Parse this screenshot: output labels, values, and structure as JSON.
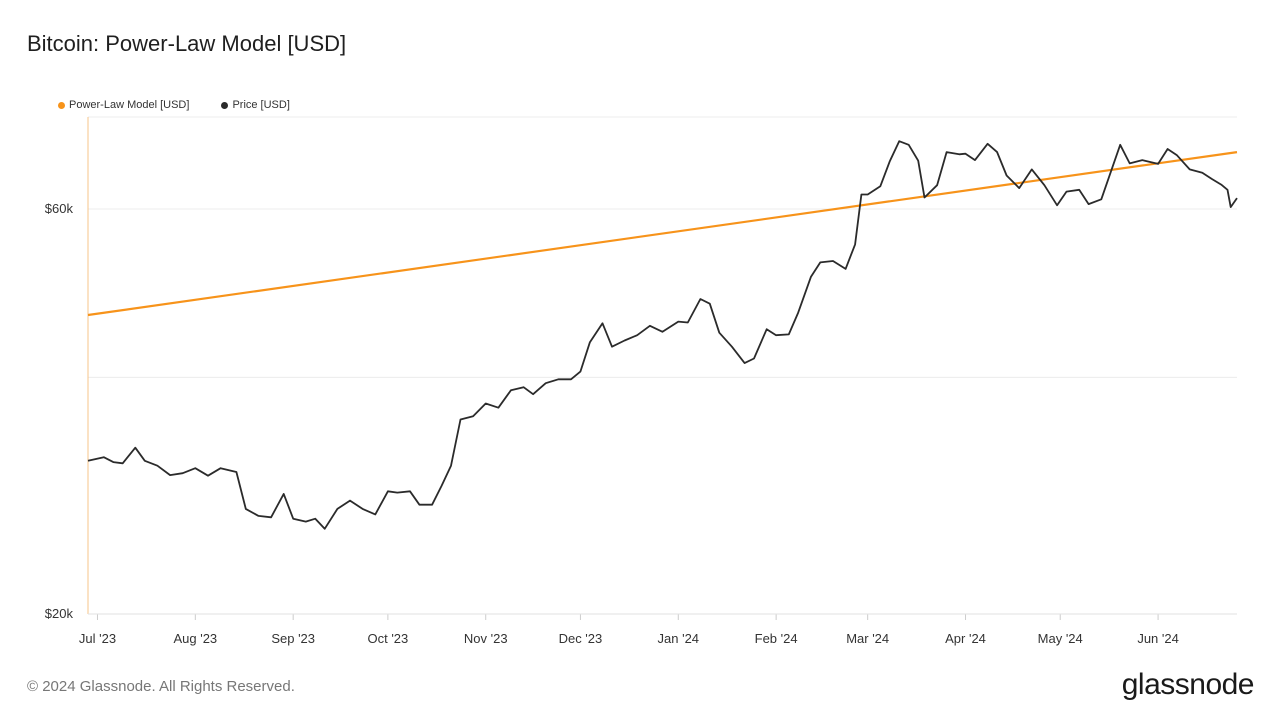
{
  "title": "Bitcoin: Power-Law Model [USD]",
  "legend": [
    {
      "label": "Power-Law Model [USD]",
      "color": "#f7931a"
    },
    {
      "label": "Price [USD]",
      "color": "#2b2b2b"
    }
  ],
  "footer": "© 2024 Glassnode. All Rights Reserved.",
  "brand": "glassnode",
  "chart_data": {
    "type": "line",
    "title": "Bitcoin: Power-Law Model [USD]",
    "y_scale": "log",
    "ylim": [
      20000,
      77000
    ],
    "y_ticks": [
      {
        "value": 20000,
        "label": "$20k"
      },
      {
        "value": 60000,
        "label": "$60k"
      }
    ],
    "y_grid": [
      20000,
      38000,
      60000,
      77000
    ],
    "xlim": [
      "2023-06-28",
      "2024-06-26"
    ],
    "x_ticks": [
      {
        "date": "2023-07-01",
        "label": "Jul '23"
      },
      {
        "date": "2023-08-01",
        "label": "Aug '23"
      },
      {
        "date": "2023-09-01",
        "label": "Sep '23"
      },
      {
        "date": "2023-10-01",
        "label": "Oct '23"
      },
      {
        "date": "2023-11-01",
        "label": "Nov '23"
      },
      {
        "date": "2023-12-01",
        "label": "Dec '23"
      },
      {
        "date": "2024-01-01",
        "label": "Jan '24"
      },
      {
        "date": "2024-02-01",
        "label": "Feb '24"
      },
      {
        "date": "2024-03-01",
        "label": "Mar '24"
      },
      {
        "date": "2024-04-01",
        "label": "Apr '24"
      },
      {
        "date": "2024-05-01",
        "label": "May '24"
      },
      {
        "date": "2024-06-01",
        "label": "Jun '24"
      }
    ],
    "series": [
      {
        "name": "Power-Law Model [USD]",
        "color": "#f7931a",
        "points": [
          [
            "2023-06-28",
            45000
          ],
          [
            "2024-06-26",
            70000
          ]
        ]
      },
      {
        "name": "Price [USD]",
        "color": "#2b2b2b",
        "points": [
          [
            "2023-06-28",
            30300
          ],
          [
            "2023-07-03",
            30600
          ],
          [
            "2023-07-06",
            30200
          ],
          [
            "2023-07-09",
            30100
          ],
          [
            "2023-07-13",
            31400
          ],
          [
            "2023-07-16",
            30300
          ],
          [
            "2023-07-20",
            29900
          ],
          [
            "2023-07-24",
            29150
          ],
          [
            "2023-07-28",
            29300
          ],
          [
            "2023-08-01",
            29700
          ],
          [
            "2023-08-05",
            29100
          ],
          [
            "2023-08-09",
            29700
          ],
          [
            "2023-08-14",
            29400
          ],
          [
            "2023-08-17",
            26600
          ],
          [
            "2023-08-21",
            26100
          ],
          [
            "2023-08-25",
            26000
          ],
          [
            "2023-08-29",
            27700
          ],
          [
            "2023-09-01",
            25900
          ],
          [
            "2023-09-05",
            25700
          ],
          [
            "2023-09-08",
            25900
          ],
          [
            "2023-09-11",
            25200
          ],
          [
            "2023-09-15",
            26600
          ],
          [
            "2023-09-19",
            27200
          ],
          [
            "2023-09-23",
            26600
          ],
          [
            "2023-09-27",
            26200
          ],
          [
            "2023-10-01",
            27900
          ],
          [
            "2023-10-04",
            27800
          ],
          [
            "2023-10-08",
            27900
          ],
          [
            "2023-10-11",
            26900
          ],
          [
            "2023-10-15",
            26900
          ],
          [
            "2023-10-18",
            28300
          ],
          [
            "2023-10-21",
            29900
          ],
          [
            "2023-10-24",
            33900
          ],
          [
            "2023-10-28",
            34200
          ],
          [
            "2023-11-01",
            35400
          ],
          [
            "2023-11-05",
            35000
          ],
          [
            "2023-11-09",
            36700
          ],
          [
            "2023-11-13",
            37000
          ],
          [
            "2023-11-16",
            36300
          ],
          [
            "2023-11-20",
            37400
          ],
          [
            "2023-11-24",
            37800
          ],
          [
            "2023-11-28",
            37800
          ],
          [
            "2023-12-01",
            38600
          ],
          [
            "2023-12-04",
            41800
          ],
          [
            "2023-12-08",
            44000
          ],
          [
            "2023-12-11",
            41300
          ],
          [
            "2023-12-15",
            42000
          ],
          [
            "2023-12-19",
            42600
          ],
          [
            "2023-12-23",
            43700
          ],
          [
            "2023-12-27",
            43000
          ],
          [
            "2024-01-01",
            44200
          ],
          [
            "2024-01-04",
            44100
          ],
          [
            "2024-01-08",
            47000
          ],
          [
            "2024-01-11",
            46400
          ],
          [
            "2024-01-14",
            42900
          ],
          [
            "2024-01-18",
            41300
          ],
          [
            "2024-01-22",
            39500
          ],
          [
            "2024-01-25",
            40000
          ],
          [
            "2024-01-29",
            43300
          ],
          [
            "2024-02-01",
            42600
          ],
          [
            "2024-02-05",
            42700
          ],
          [
            "2024-02-08",
            45300
          ],
          [
            "2024-02-12",
            49900
          ],
          [
            "2024-02-15",
            51900
          ],
          [
            "2024-02-19",
            52100
          ],
          [
            "2024-02-23",
            51000
          ],
          [
            "2024-02-26",
            54500
          ],
          [
            "2024-02-28",
            62400
          ],
          [
            "2024-03-01",
            62400
          ],
          [
            "2024-03-05",
            63800
          ],
          [
            "2024-03-08",
            68300
          ],
          [
            "2024-03-11",
            72100
          ],
          [
            "2024-03-14",
            71400
          ],
          [
            "2024-03-17",
            68400
          ],
          [
            "2024-03-19",
            61900
          ],
          [
            "2024-03-23",
            64000
          ],
          [
            "2024-03-26",
            70000
          ],
          [
            "2024-03-30",
            69600
          ],
          [
            "2024-04-01",
            69700
          ],
          [
            "2024-04-04",
            68500
          ],
          [
            "2024-04-08",
            71600
          ],
          [
            "2024-04-11",
            70000
          ],
          [
            "2024-04-14",
            65700
          ],
          [
            "2024-04-18",
            63500
          ],
          [
            "2024-04-22",
            66800
          ],
          [
            "2024-04-26",
            64000
          ],
          [
            "2024-04-30",
            60600
          ],
          [
            "2024-05-03",
            62900
          ],
          [
            "2024-05-07",
            63200
          ],
          [
            "2024-05-10",
            60800
          ],
          [
            "2024-05-14",
            61600
          ],
          [
            "2024-05-17",
            66300
          ],
          [
            "2024-05-20",
            71400
          ],
          [
            "2024-05-23",
            67900
          ],
          [
            "2024-05-27",
            68500
          ],
          [
            "2024-06-01",
            67800
          ],
          [
            "2024-06-04",
            70600
          ],
          [
            "2024-06-07",
            69400
          ],
          [
            "2024-06-11",
            66800
          ],
          [
            "2024-06-15",
            66200
          ],
          [
            "2024-06-18",
            65100
          ],
          [
            "2024-06-21",
            64100
          ],
          [
            "2024-06-23",
            63200
          ],
          [
            "2024-06-24",
            60300
          ],
          [
            "2024-06-26",
            61800
          ]
        ]
      }
    ]
  }
}
